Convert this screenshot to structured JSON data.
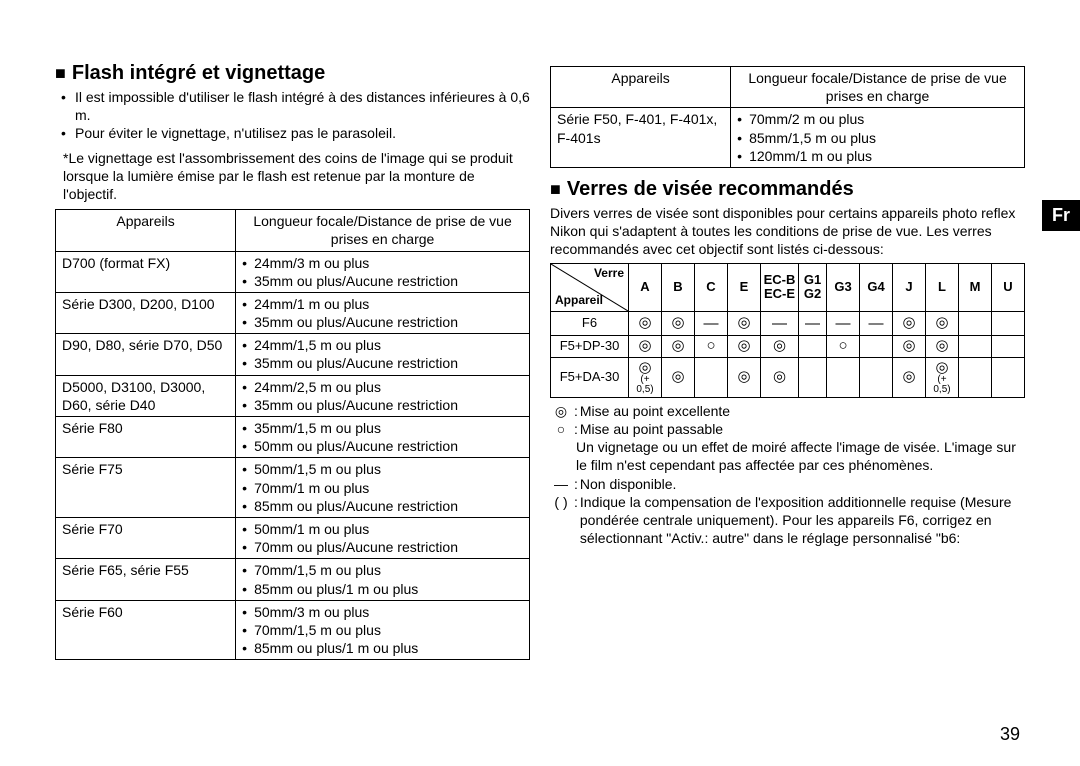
{
  "lang_tab": "Fr",
  "page_number": "39",
  "left": {
    "title": "Flash intégré et vignettage",
    "bullets": [
      "Il est impossible d'utiliser le flash intégré à des distances inférieures à 0,6 m.",
      "Pour éviter le vignettage, n'utilisez pas le parasoleil."
    ],
    "note": "*Le vignettage est l'assombrissement des coins de l'image qui se produit lorsque la lumière émise par le flash est retenue par la monture de l'objectif.",
    "table": {
      "header_a": "Appareils",
      "header_b": "Longueur focale/Distance de prise de vue prises en charge",
      "rows": [
        {
          "a": "D700 (format FX)",
          "b": [
            "24mm/3 m ou plus",
            "35mm ou plus/Aucune restriction"
          ]
        },
        {
          "a": "Série D300, D200, D100",
          "b": [
            "24mm/1 m ou plus",
            "35mm ou plus/Aucune restriction"
          ]
        },
        {
          "a": "D90, D80, série D70, D50",
          "b": [
            "24mm/1,5 m ou plus",
            "35mm ou plus/Aucune restriction"
          ]
        },
        {
          "a": "D5000, D3100, D3000, D60, série D40",
          "b": [
            "24mm/2,5 m ou plus",
            "35mm ou plus/Aucune restriction"
          ]
        },
        {
          "a": "Série F80",
          "b": [
            "35mm/1,5 m ou plus",
            "50mm ou plus/Aucune restriction"
          ]
        },
        {
          "a": "Série F75",
          "b": [
            "50mm/1,5 m ou plus",
            "70mm/1 m ou plus",
            "85mm ou plus/Aucune restriction"
          ]
        },
        {
          "a": "Série F70",
          "b": [
            "50mm/1 m ou plus",
            "70mm ou plus/Aucune restriction"
          ]
        },
        {
          "a": "Série F65, série F55",
          "b": [
            "70mm/1,5 m ou plus",
            "85mm ou plus/1 m ou plus"
          ]
        },
        {
          "a": "Série F60",
          "b": [
            "50mm/3 m ou plus",
            "70mm/1,5 m ou plus",
            "85mm ou plus/1 m ou plus"
          ]
        }
      ]
    }
  },
  "right": {
    "top_table": {
      "header_a": "Appareils",
      "header_b": "Longueur focale/Distance de prise de vue prises en charge",
      "rows": [
        {
          "a": "Série F50, F-401, F-401x, F-401s",
          "b": [
            "70mm/2 m ou plus",
            "85mm/1,5 m ou plus",
            "120mm/1 m ou plus"
          ]
        }
      ]
    },
    "title": "Verres de visée recommandés",
    "intro": "Divers verres de visée sont disponibles pour certains appareils photo reflex Nikon qui s'adaptent à toutes les conditions de prise de vue. Les verres recommandés avec cet objectif sont listés ci-dessous:",
    "screen_table": {
      "diag_top": "Verre",
      "diag_bot": "Appareil",
      "columns": [
        "A",
        "B",
        "C",
        "E",
        "EC-B EC-E",
        "G1 G2",
        "G3",
        "G4",
        "J",
        "L",
        "M",
        "U"
      ],
      "col_split": {
        "4": [
          "EC-B",
          "EC-E"
        ],
        "5": [
          "G1",
          "G2"
        ]
      },
      "rows": [
        {
          "label": "F6",
          "cells": [
            "◎",
            "◎",
            "—",
            "◎",
            "—",
            "—",
            "—",
            "—",
            "◎",
            "◎",
            "",
            ""
          ]
        },
        {
          "label": "F5+DP-30",
          "cells": [
            "◎",
            "◎",
            "○",
            "◎",
            "◎",
            "",
            "○",
            "",
            "◎",
            "◎",
            "",
            ""
          ]
        },
        {
          "label": "F5+DA-30",
          "cells": [
            "◎+",
            "◎",
            "",
            "◎",
            "◎",
            "",
            "",
            "",
            "◎",
            "◎+",
            "",
            ""
          ]
        }
      ],
      "plus_note": "(+ 0,5)"
    },
    "legend": [
      {
        "sym": "◎",
        "text": "Mise au point excellente"
      },
      {
        "sym": "○",
        "text": "Mise au point passable\nUn vignetage ou un effet de moiré affecte l'image de visée. L'image sur le film n'est cependant pas affectée par ces phénomènes."
      },
      {
        "sym": "—",
        "text": "Non disponible."
      },
      {
        "sym": "( )",
        "text": "Indique la compensation de l'exposition additionnelle requise (Mesure pondérée centrale uniquement). Pour les appareils F6, corrigez en sélectionnant \"Activ.: autre\" dans le réglage personnalisé \"b6:"
      }
    ]
  }
}
